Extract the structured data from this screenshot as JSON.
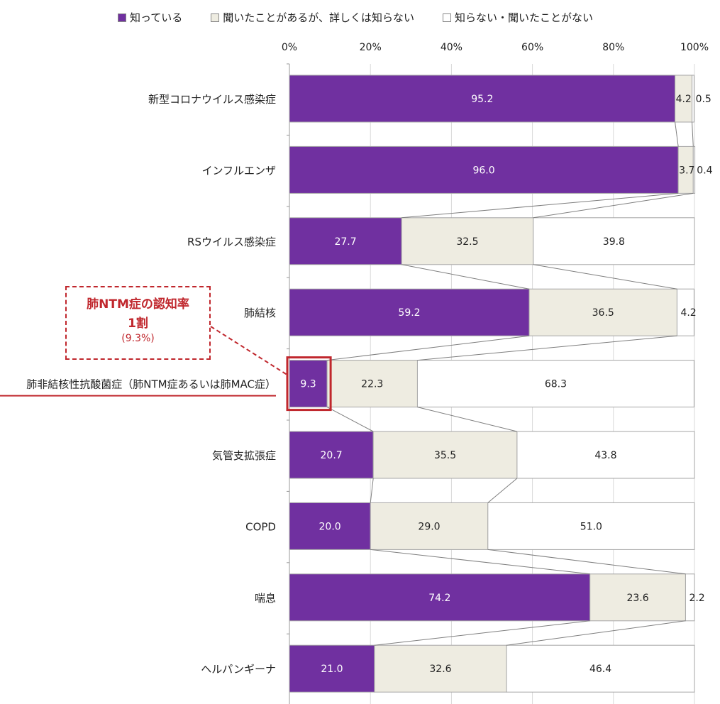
{
  "legend": {
    "items": [
      {
        "label": "知っている",
        "color": "#7030a0"
      },
      {
        "label": "聞いたことがあるが、詳しくは知らない",
        "color": "#eeece1"
      },
      {
        "label": "知らない・聞いたことがない",
        "color": "#ffffff"
      }
    ]
  },
  "callout": {
    "line1": "肺NTM症の認知率",
    "line2": "1割",
    "line3": "(9.3%)"
  },
  "chart_data": {
    "type": "bar",
    "orientation": "horizontal",
    "stacked": true,
    "x_ticks": [
      "0%",
      "20%",
      "40%",
      "60%",
      "80%",
      "100%"
    ],
    "xlim": [
      0,
      100
    ],
    "grid": true,
    "legend_position": "top",
    "categories": [
      "新型コロナウイルス感染症",
      "インフルエンザ",
      "RSウイルス感染症",
      "肺結核",
      "肺非結核性抗酸菌症（肺NTM症あるいは肺MAC症）",
      "気管支拡張症",
      "COPD",
      "喘息",
      "ヘルパンギーナ"
    ],
    "series": [
      {
        "name": "知っている",
        "color": "#7030a0",
        "values": [
          95.2,
          96.0,
          27.7,
          59.2,
          9.3,
          20.7,
          20.0,
          74.2,
          21.0
        ]
      },
      {
        "name": "聞いたことがあるが、詳しくは知らない",
        "color": "#eeece1",
        "values": [
          4.2,
          3.7,
          32.5,
          36.5,
          22.3,
          35.5,
          29.0,
          23.6,
          32.6
        ]
      },
      {
        "name": "知らない・聞いたことがない",
        "color": "#ffffff",
        "values": [
          0.5,
          0.4,
          39.8,
          4.2,
          68.3,
          43.8,
          51.0,
          2.2,
          46.4
        ]
      }
    ],
    "value_labels": [
      [
        "95.2",
        "4.2",
        "0.5"
      ],
      [
        "96.0",
        "3.7",
        "0.4"
      ],
      [
        "27.7",
        "32.5",
        "39.8"
      ],
      [
        "59.2",
        "36.5",
        "4.2"
      ],
      [
        "9.3",
        "22.3",
        "68.3"
      ],
      [
        "20.7",
        "35.5",
        "43.8"
      ],
      [
        "20.0",
        "29.0",
        "51.0"
      ],
      [
        "74.2",
        "23.6",
        "2.2"
      ],
      [
        "21.0",
        "32.6",
        "46.4"
      ]
    ],
    "highlight_category_index": 4,
    "highlight_color": "#c0272d"
  }
}
